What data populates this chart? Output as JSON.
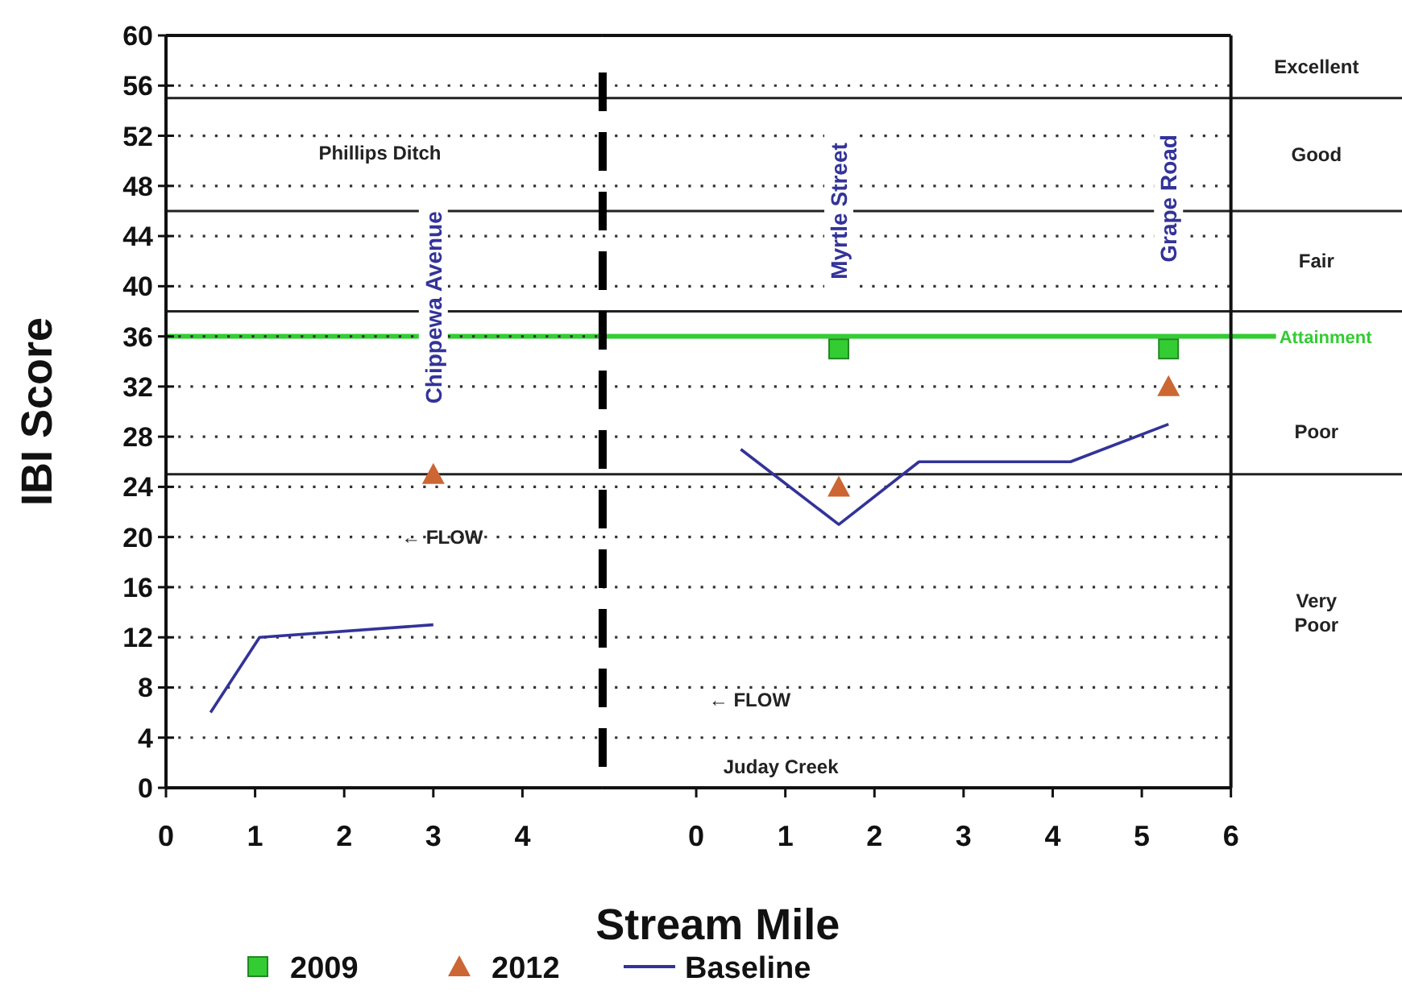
{
  "chart_data": [
    {
      "type": "scatter",
      "ylabel": "IBI Score",
      "xlim": [
        0,
        4.9
      ],
      "xticks": [
        0,
        1,
        2,
        3,
        4
      ],
      "ylim": [
        0,
        60
      ],
      "yticks": [
        0,
        4,
        8,
        12,
        16,
        20,
        24,
        28,
        32,
        36,
        40,
        44,
        48,
        52,
        56,
        60
      ],
      "grid": "y",
      "series": [
        {
          "color": "#cc6633",
          "marker": "triangle",
          "x": [
            3
          ],
          "values": [
            25
          ]
        },
        {
          "type": "line",
          "color": "#333399",
          "marker": "none",
          "x": [
            0.5,
            1.05,
            3
          ],
          "values": [
            6,
            12,
            13
          ]
        }
      ],
      "annotations": [
        "Phillips Ditch",
        "Chippewa Avenue",
        "← FLOW"
      ]
    },
    {
      "type": "scatter",
      "xlabel": "Stream Mile",
      "xlim": [
        -1.05,
        6
      ],
      "xticks": [
        0,
        1,
        2,
        3,
        4,
        5,
        6
      ],
      "ylim": [
        0,
        60
      ],
      "yticks": [
        0,
        4,
        8,
        12,
        16,
        20,
        24,
        28,
        32,
        36,
        40,
        44,
        48,
        52,
        56,
        60
      ],
      "grid": "y",
      "tick_labels": "x",
      "legend": "bottom",
      "series": [
        {
          "name": "2009",
          "color": "#33cc33",
          "marker": "square",
          "x": [
            1.6,
            5.3
          ],
          "values": [
            35,
            35
          ]
        },
        {
          "name": "2012",
          "color": "#cc6633",
          "marker": "triangle",
          "x": [
            1.6,
            5.3
          ],
          "values": [
            24,
            32
          ]
        },
        {
          "name": "Baseline",
          "type": "line",
          "color": "#333399",
          "marker": "none",
          "x": [
            0.5,
            1.6,
            2.5,
            4.2,
            5.3
          ],
          "values": [
            27,
            21,
            26,
            26,
            29
          ]
        }
      ],
      "ref_lines": [
        {
          "axis": "y",
          "value": 55
        },
        {
          "axis": "y",
          "value": 46
        },
        {
          "axis": "y",
          "value": 38
        },
        {
          "axis": "y",
          "value": 25
        },
        {
          "axis": "y",
          "value": 36,
          "label": "Attainment",
          "color": "#33cc33"
        }
      ],
      "annotations": [
        "Myrtle Street",
        "Grape Road",
        "← FLOW",
        "Juday Creek",
        "Excellent",
        "Good",
        "Fair",
        "Poor",
        "Very Poor"
      ]
    }
  ]
}
